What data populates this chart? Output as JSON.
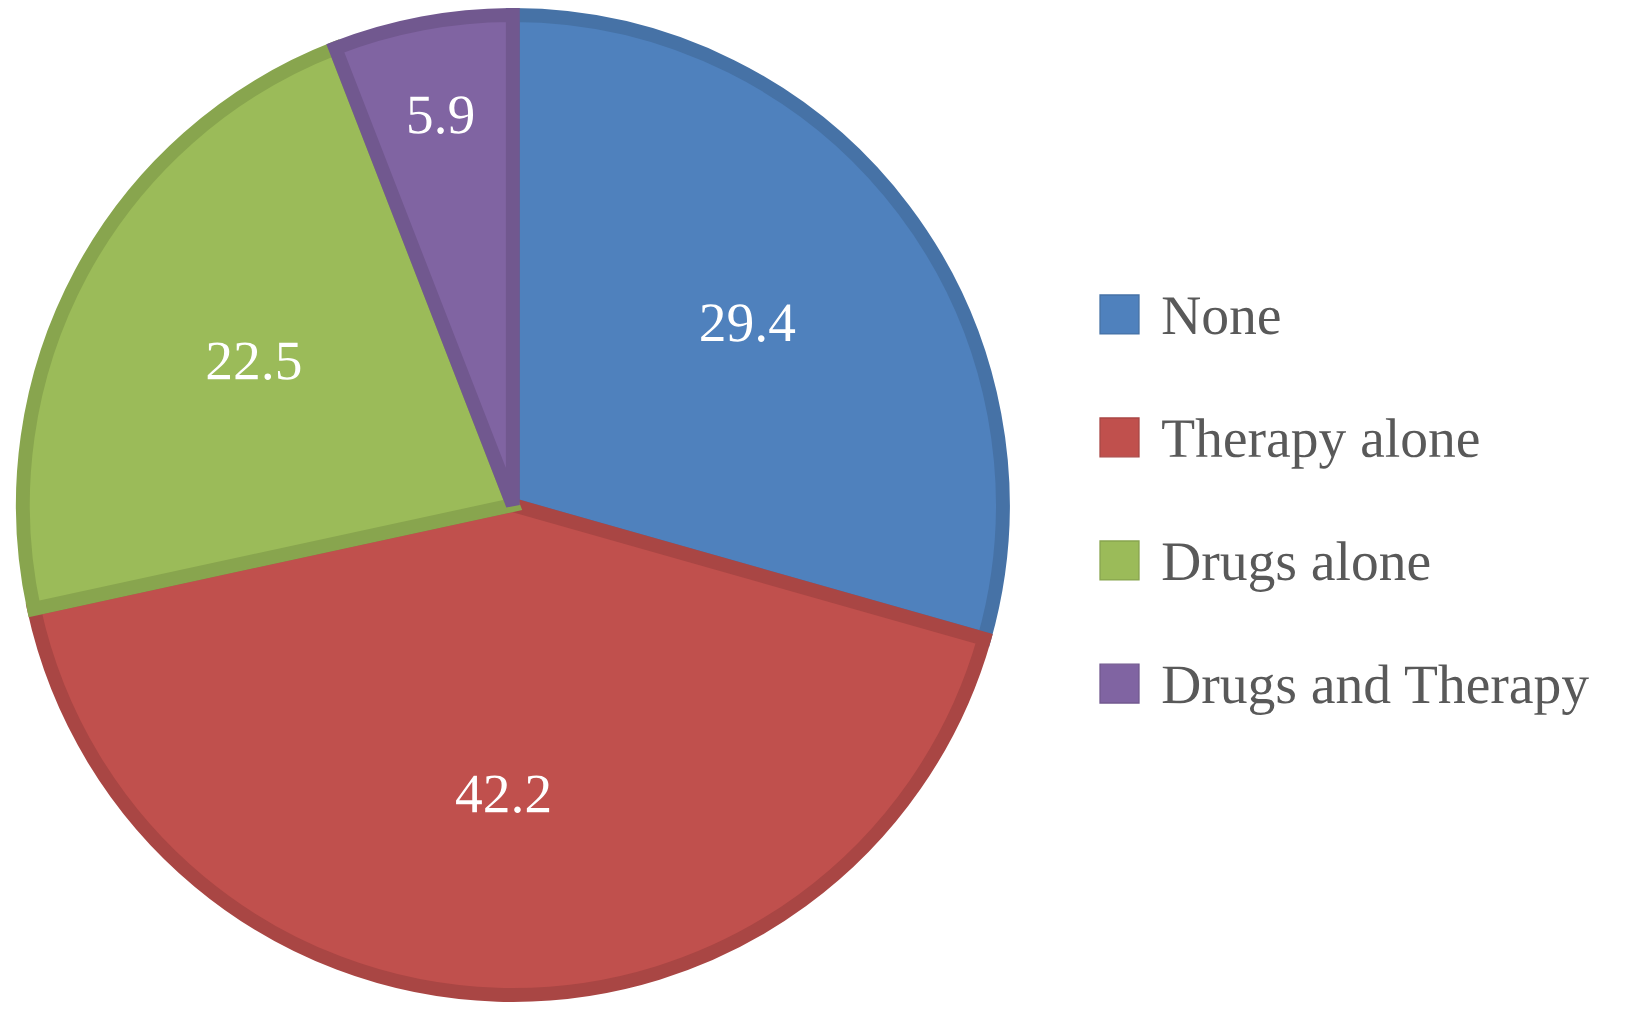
{
  "chart_data": {
    "type": "pie",
    "categories": [
      "None",
      "Therapy alone",
      "Drugs alone",
      "Drugs and Therapy"
    ],
    "values": [
      29.4,
      42.2,
      22.5,
      5.9
    ],
    "colors": [
      "#4f81bd",
      "#c0504d",
      "#9bbb59",
      "#8064a2"
    ],
    "data_labels": true,
    "legend": "right"
  }
}
